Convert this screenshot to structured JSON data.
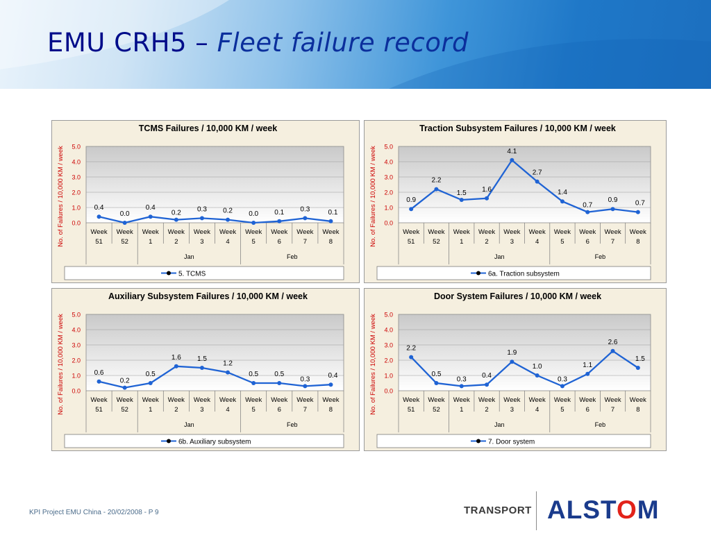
{
  "slide": {
    "title_part1": "EMU CRH5 – ",
    "title_part2": "Fleet failure record",
    "footer": "KPI Project EMU China - 20/02/2008 - P 9",
    "transport_label": "TRANSPORT",
    "brand_pre": "ALST",
    "brand_o": "O",
    "brand_post": "M",
    "colors": {
      "line": "#1f63d4",
      "panel_bg": "#f5efdf",
      "title": "#000c8a",
      "brand": "#1a3b8c",
      "brand_accent": "#e2231a"
    }
  },
  "chart_data": [
    {
      "type": "line",
      "title": "TCMS Failures / 10,000 KM / week",
      "ylabel": "No. of Failures / 10,000 KM / week",
      "ylim": [
        0,
        5
      ],
      "yticks": [
        "0.0",
        "1.0",
        "2.0",
        "3.0",
        "4.0",
        "5.0"
      ],
      "categories": [
        [
          "Week",
          "51"
        ],
        [
          "Week",
          "52"
        ],
        [
          "Week",
          "1"
        ],
        [
          "Week",
          "2"
        ],
        [
          "Week",
          "3"
        ],
        [
          "Week",
          "4"
        ],
        [
          "Week",
          "5"
        ],
        [
          "Week",
          "6"
        ],
        [
          "Week",
          "7"
        ],
        [
          "Week",
          "8"
        ]
      ],
      "months": [
        {
          "label": "Jan",
          "start": 2,
          "end": 5
        },
        {
          "label": "Feb",
          "start": 6,
          "end": 9
        }
      ],
      "series": [
        {
          "name": "5. TCMS",
          "values": [
            0.4,
            0.0,
            0.4,
            0.2,
            0.3,
            0.2,
            0.0,
            0.1,
            0.3,
            0.1
          ],
          "labels": [
            "0.4",
            "0.0",
            "0.4",
            "0.2",
            "0.3",
            "0.2",
            "0.0",
            "0.1",
            "0.3",
            "0.1"
          ]
        }
      ],
      "grid": true,
      "legend": "bottom"
    },
    {
      "type": "line",
      "title": "Traction Subsystem Failures / 10,000 KM / week",
      "ylabel": "No. of Failures / 10,000 KM / week",
      "ylim": [
        0,
        5
      ],
      "yticks": [
        "0.0",
        "1.0",
        "2.0",
        "3.0",
        "4.0",
        "5.0"
      ],
      "categories": [
        [
          "Week",
          "51"
        ],
        [
          "Week",
          "52"
        ],
        [
          "Week",
          "1"
        ],
        [
          "Week",
          "2"
        ],
        [
          "Week",
          "3"
        ],
        [
          "Week",
          "4"
        ],
        [
          "Week",
          "5"
        ],
        [
          "Week",
          "6"
        ],
        [
          "Week",
          "7"
        ],
        [
          "Week",
          "8"
        ]
      ],
      "months": [
        {
          "label": "Jan",
          "start": 2,
          "end": 5
        },
        {
          "label": "Feb",
          "start": 6,
          "end": 9
        }
      ],
      "series": [
        {
          "name": "6a. Traction subsystem",
          "values": [
            0.9,
            2.2,
            1.5,
            1.6,
            4.1,
            2.7,
            1.4,
            0.7,
            0.9,
            0.7
          ],
          "labels": [
            "0.9",
            "2.2",
            "1.5",
            "1.6",
            "4.1",
            "2.7",
            "1.4",
            "0.7",
            "0.9",
            "0.7"
          ]
        }
      ],
      "grid": true,
      "legend": "bottom"
    },
    {
      "type": "line",
      "title": "Auxiliary Subsystem Failures / 10,000 KM / week",
      "ylabel": "No. of Failures / 10,000 KM / week",
      "ylim": [
        0,
        5
      ],
      "yticks": [
        "0.0",
        "1.0",
        "2.0",
        "3.0",
        "4.0",
        "5.0"
      ],
      "categories": [
        [
          "Week",
          "51"
        ],
        [
          "Week",
          "52"
        ],
        [
          "Week",
          "1"
        ],
        [
          "Week",
          "2"
        ],
        [
          "Week",
          "3"
        ],
        [
          "Week",
          "4"
        ],
        [
          "Week",
          "5"
        ],
        [
          "Week",
          "6"
        ],
        [
          "Week",
          "7"
        ],
        [
          "Week",
          "8"
        ]
      ],
      "months": [
        {
          "label": "Jan",
          "start": 2,
          "end": 5
        },
        {
          "label": "Feb",
          "start": 6,
          "end": 9
        }
      ],
      "series": [
        {
          "name": "6b. Auxiliary subsystem",
          "values": [
            0.6,
            0.2,
            0.5,
            1.6,
            1.5,
            1.2,
            0.5,
            0.5,
            0.3,
            0.4
          ],
          "labels": [
            "0.6",
            "0.2",
            "0.5",
            "1.6",
            "1.5",
            "1.2",
            "0.5",
            "0.5",
            "0.3",
            "0.4"
          ]
        }
      ],
      "grid": true,
      "legend": "bottom"
    },
    {
      "type": "line",
      "title": "Door System Failures / 10,000 KM / week",
      "ylabel": "No. of Failures / 10,000 KM / week",
      "ylim": [
        0,
        5
      ],
      "yticks": [
        "0.0",
        "1.0",
        "2.0",
        "3.0",
        "4.0",
        "5.0"
      ],
      "categories": [
        [
          "Week",
          "51"
        ],
        [
          "Week",
          "52"
        ],
        [
          "Week",
          "1"
        ],
        [
          "Week",
          "2"
        ],
        [
          "Week",
          "3"
        ],
        [
          "Week",
          "4"
        ],
        [
          "Week",
          "5"
        ],
        [
          "Week",
          "6"
        ],
        [
          "Week",
          "7"
        ],
        [
          "Week",
          "8"
        ]
      ],
      "months": [
        {
          "label": "Jan",
          "start": 2,
          "end": 5
        },
        {
          "label": "Feb",
          "start": 6,
          "end": 9
        }
      ],
      "series": [
        {
          "name": "7. Door system",
          "values": [
            2.2,
            0.5,
            0.3,
            0.4,
            1.9,
            1.0,
            0.3,
            1.1,
            2.6,
            1.5
          ],
          "labels": [
            "2.2",
            "0.5",
            "0.3",
            "0.4",
            "1.9",
            "1.0",
            "0.3",
            "1.1",
            "2.6",
            "1.5"
          ]
        }
      ],
      "grid": true,
      "legend": "bottom"
    }
  ]
}
